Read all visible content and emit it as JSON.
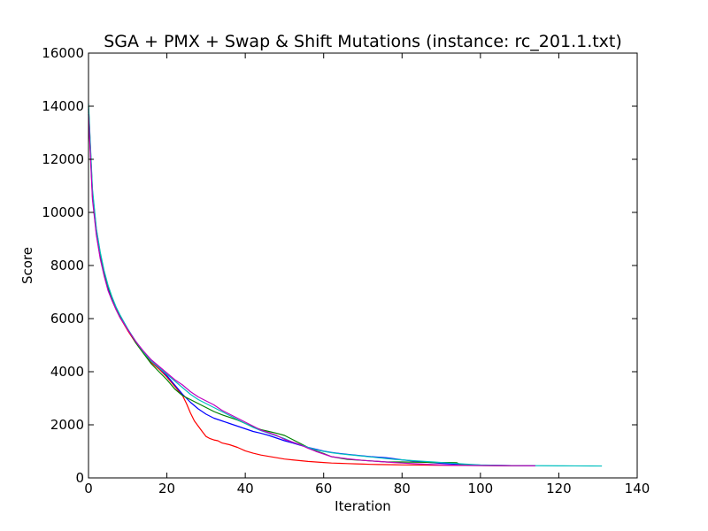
{
  "chart_data": {
    "type": "line",
    "title": "SGA + PMX + Swap & Shift Mutations (instance: rc_201.1.txt)",
    "xlabel": "Iteration",
    "ylabel": "Score",
    "xlim": [
      0,
      140
    ],
    "ylim": [
      0,
      16000
    ],
    "xticks": [
      0,
      20,
      40,
      60,
      80,
      100,
      120,
      140
    ],
    "yticks": [
      0,
      2000,
      4000,
      6000,
      8000,
      10000,
      12000,
      14000,
      16000
    ],
    "grid": false,
    "legend": "none",
    "series": [
      {
        "color": "#ff0000",
        "x": [
          0,
          1,
          2,
          3,
          4,
          5,
          6,
          7,
          8,
          9,
          10,
          12,
          14,
          16,
          18,
          20,
          22,
          24,
          25,
          26,
          27,
          28,
          29,
          30,
          31,
          32,
          33,
          34,
          36,
          38,
          40,
          42,
          44,
          46,
          48,
          50,
          52,
          54,
          56,
          58,
          60,
          62,
          64,
          66,
          68,
          70,
          72,
          74,
          76,
          78,
          80,
          84,
          88,
          92,
          96,
          100,
          104,
          108,
          112,
          114
        ],
        "y": [
          13800,
          10600,
          9200,
          8300,
          7650,
          7100,
          6700,
          6350,
          6050,
          5800,
          5550,
          5100,
          4700,
          4350,
          4100,
          3800,
          3450,
          3100,
          2800,
          2450,
          2150,
          1950,
          1750,
          1560,
          1480,
          1430,
          1400,
          1320,
          1250,
          1150,
          1020,
          930,
          860,
          810,
          760,
          710,
          680,
          650,
          620,
          600,
          580,
          560,
          550,
          540,
          530,
          520,
          510,
          505,
          500,
          495,
          490,
          485,
          480,
          475,
          470,
          465,
          460,
          458,
          455,
          455
        ]
      },
      {
        "color": "#0000ff",
        "x": [
          0,
          1,
          2,
          3,
          4,
          5,
          6,
          7,
          8,
          9,
          10,
          12,
          14,
          16,
          18,
          20,
          22,
          24,
          26,
          28,
          30,
          32,
          34,
          36,
          38,
          40,
          42,
          44,
          46,
          48,
          50,
          52,
          54,
          56,
          58,
          60,
          62,
          64,
          66,
          68,
          70,
          72,
          74,
          76,
          78,
          80,
          84,
          88,
          92,
          96,
          100,
          104,
          108,
          112,
          114
        ],
        "y": [
          13900,
          10700,
          9300,
          8400,
          7700,
          7150,
          6750,
          6400,
          6100,
          5850,
          5600,
          5150,
          4750,
          4400,
          4150,
          3850,
          3500,
          3150,
          2850,
          2600,
          2400,
          2250,
          2150,
          2050,
          1950,
          1850,
          1750,
          1680,
          1600,
          1500,
          1400,
          1320,
          1230,
          1150,
          1080,
          1010,
          960,
          920,
          890,
          860,
          830,
          800,
          780,
          760,
          720,
          680,
          620,
          570,
          530,
          500,
          480,
          470,
          465,
          460,
          460
        ]
      },
      {
        "color": "#008000",
        "x": [
          0,
          1,
          2,
          3,
          4,
          5,
          6,
          7,
          8,
          9,
          10,
          12,
          14,
          16,
          18,
          20,
          22,
          24,
          26,
          28,
          30,
          32,
          34,
          36,
          38,
          40,
          42,
          44,
          46,
          48,
          50,
          52,
          54,
          56,
          58,
          60,
          62,
          64,
          66,
          68,
          70,
          72,
          74,
          76,
          78,
          80,
          82,
          84,
          86,
          88,
          90,
          92,
          94,
          95,
          98,
          100,
          104,
          108,
          112,
          114
        ],
        "y": [
          14000,
          10800,
          9350,
          8450,
          7750,
          7200,
          6780,
          6420,
          6120,
          5860,
          5600,
          5100,
          4700,
          4300,
          4000,
          3700,
          3350,
          3100,
          2950,
          2800,
          2650,
          2500,
          2380,
          2280,
          2180,
          2050,
          1920,
          1820,
          1750,
          1680,
          1600,
          1450,
          1300,
          1150,
          1020,
          920,
          800,
          750,
          700,
          680,
          660,
          640,
          620,
          600,
          600,
          600,
          595,
          590,
          585,
          580,
          580,
          580,
          570,
          490,
          480,
          470,
          465,
          460,
          458,
          455
        ]
      },
      {
        "color": "#00bfbf",
        "x": [
          0,
          1,
          2,
          3,
          4,
          5,
          6,
          7,
          8,
          9,
          10,
          12,
          14,
          16,
          18,
          20,
          22,
          24,
          26,
          28,
          30,
          32,
          34,
          36,
          38,
          40,
          42,
          44,
          46,
          48,
          50,
          52,
          54,
          56,
          58,
          60,
          62,
          64,
          66,
          68,
          70,
          72,
          74,
          76,
          78,
          80,
          84,
          88,
          92,
          96,
          100,
          104,
          108,
          112,
          116,
          120,
          124,
          128,
          131
        ],
        "y": [
          14100,
          10900,
          9400,
          8500,
          7800,
          7250,
          6820,
          6450,
          6150,
          5880,
          5620,
          5150,
          4750,
          4400,
          4150,
          3900,
          3650,
          3400,
          3150,
          2950,
          2800,
          2650,
          2500,
          2350,
          2200,
          2050,
          1900,
          1780,
          1680,
          1580,
          1480,
          1350,
          1250,
          1150,
          1060,
          1000,
          950,
          910,
          880,
          850,
          820,
          790,
          760,
          730,
          700,
          680,
          640,
          600,
          560,
          520,
          490,
          475,
          465,
          460,
          458,
          455,
          452,
          450,
          448
        ]
      },
      {
        "color": "#bf00bf",
        "x": [
          0,
          1,
          2,
          3,
          4,
          5,
          6,
          7,
          8,
          9,
          10,
          12,
          14,
          16,
          18,
          20,
          22,
          24,
          26,
          28,
          30,
          32,
          34,
          36,
          38,
          40,
          42,
          44,
          46,
          48,
          50,
          52,
          54,
          56,
          58,
          60,
          62,
          64,
          66,
          68,
          70,
          72,
          74,
          76,
          78,
          80,
          84,
          88,
          92,
          96,
          100,
          104,
          108,
          112,
          114
        ],
        "y": [
          13700,
          10500,
          9150,
          8250,
          7600,
          7050,
          6680,
          6350,
          6050,
          5820,
          5580,
          5150,
          4780,
          4450,
          4200,
          3950,
          3700,
          3500,
          3250,
          3050,
          2900,
          2750,
          2550,
          2400,
          2250,
          2100,
          1950,
          1800,
          1700,
          1600,
          1450,
          1350,
          1250,
          1120,
          1000,
          900,
          800,
          760,
          720,
          690,
          660,
          640,
          620,
          600,
          580,
          560,
          530,
          500,
          480,
          470,
          465,
          462,
          460,
          458,
          455
        ]
      }
    ]
  }
}
